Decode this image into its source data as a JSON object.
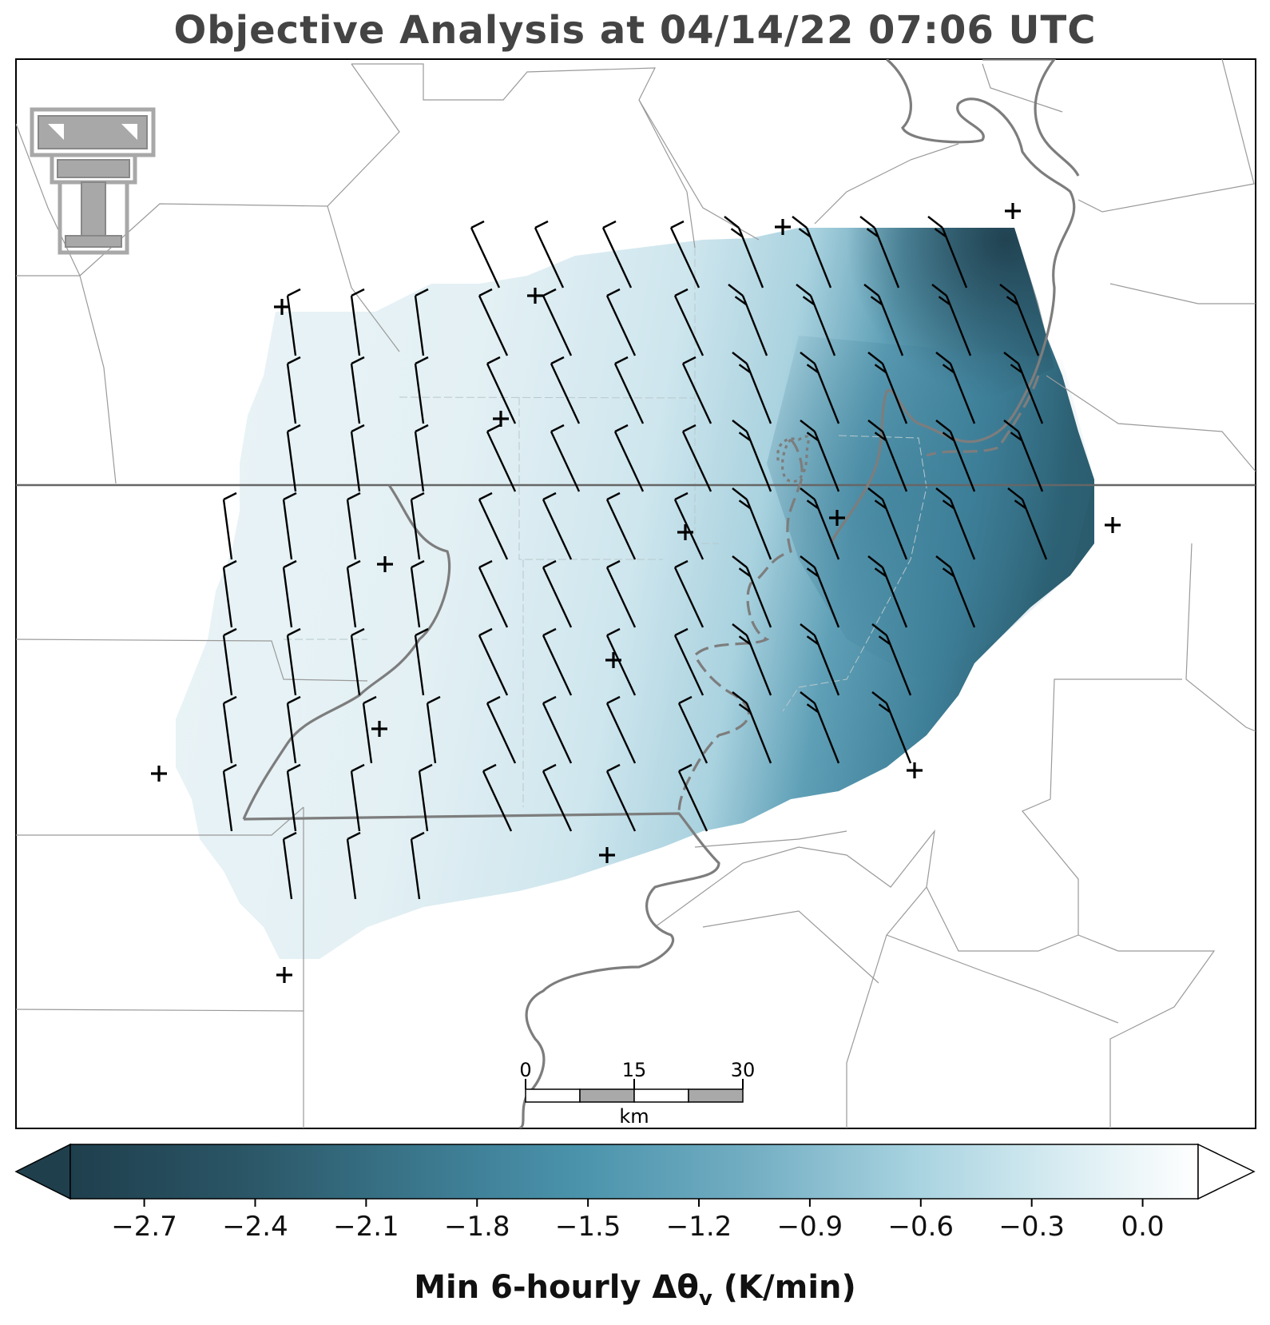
{
  "title": "Objective Analysis at 04/14/22 07:06 UTC",
  "logo": {
    "name": "texas-tech-double-t-logo",
    "color": "#a8a8a8"
  },
  "colorbar": {
    "label_main": "Min 6-hourly Δθ",
    "label_sub": "v",
    "label_units": " (K/min)",
    "min": -2.9,
    "max": 0.15,
    "ticks": [
      "−2.7",
      "−2.4",
      "−2.1",
      "−1.8",
      "−1.5",
      "−1.2",
      "−0.9",
      "−0.6",
      "−0.3",
      "0.0"
    ],
    "tick_values": [
      -2.7,
      -2.4,
      -2.1,
      -1.8,
      -1.5,
      -1.2,
      -0.9,
      -0.6,
      -0.3,
      0.0
    ],
    "extend": "both",
    "colors": {
      "low": "#1f3f4d",
      "mid": "#4a93ab",
      "light": "#b7dbe5",
      "high": "#ffffff"
    }
  },
  "scale_bar": {
    "labels": [
      "0",
      "15",
      "30"
    ],
    "unit": "km"
  },
  "stations_marker": "+",
  "field_color": {
    "west": "#e8f3f6",
    "central": "#cfe8ef",
    "east": "#3b7f99"
  }
}
